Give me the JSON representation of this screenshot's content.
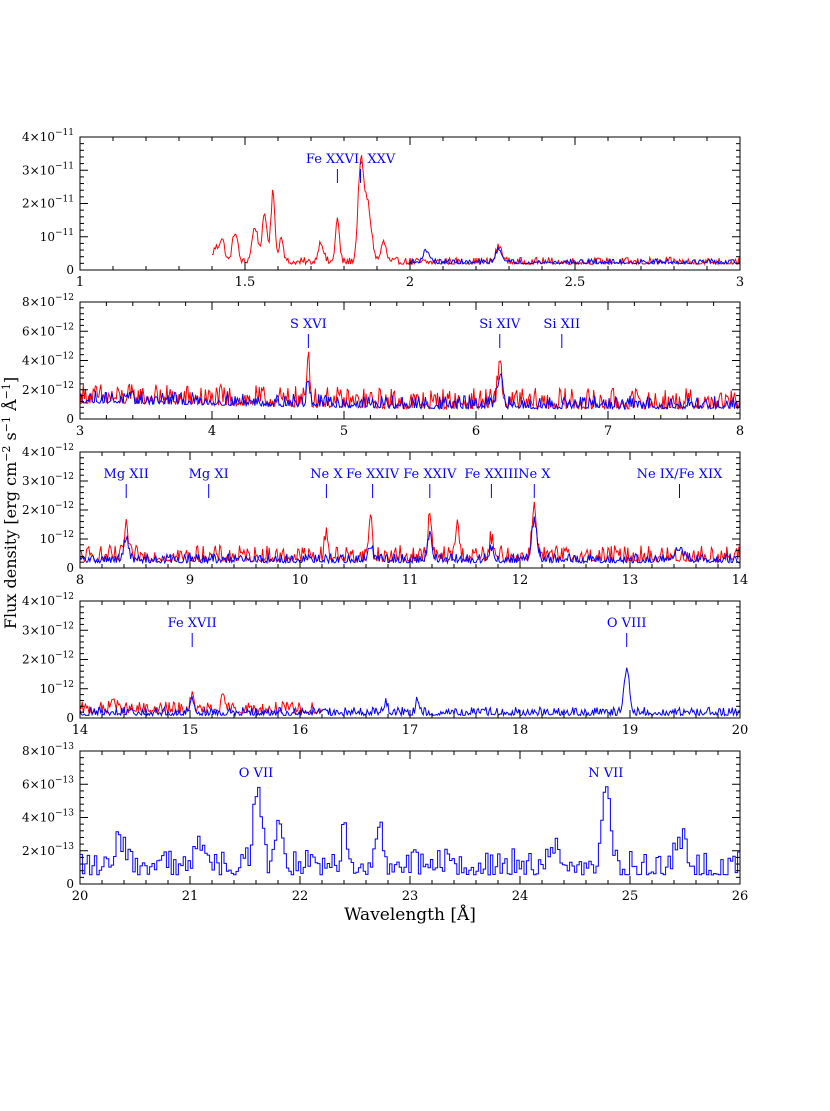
{
  "figure": {
    "ylabel_parts": {
      "prefix": "Flux density [erg cm",
      "exp1": "−2",
      "mid1": " s",
      "exp2": "−1",
      "mid2": " Å",
      "exp3": "−1",
      "suffix": "]"
    },
    "xlabel": "Wavelength [Å]",
    "colors": {
      "series_red": "#ff0000",
      "series_blue": "#0000ff",
      "annotation": "#0000ff",
      "axes": "#000000"
    },
    "series_colors": [
      "red",
      "blue"
    ]
  },
  "chart_data": [
    {
      "type": "line",
      "panel": 1,
      "xlim": [
        1,
        3
      ],
      "ylim": [
        0,
        4e-11
      ],
      "xticks": [
        1,
        1.5,
        2,
        2.5,
        3
      ],
      "xtick_labels": [
        "1",
        "1.5",
        "2",
        "2.5",
        "3"
      ],
      "yticks": [
        0,
        1e-11,
        2e-11,
        3e-11,
        4e-11
      ],
      "ytick_labels": [
        {
          "base": "0",
          "exp": ""
        },
        {
          "base": "10",
          "exp": "−11"
        },
        {
          "base": "2×10",
          "exp": "−11"
        },
        {
          "base": "3×10",
          "exp": "−11"
        },
        {
          "base": "4×10",
          "exp": "−11"
        }
      ],
      "annotations": [
        {
          "text": "Fe XXVI, XXV",
          "x": 1.82,
          "ticks": [
            1.78,
            1.85
          ]
        }
      ],
      "series": [
        {
          "color": "red",
          "x_start": 1.4,
          "x_end": 3.0,
          "baseline": 2.2e-12,
          "noise": 1.3e-12,
          "peaks": [
            [
              1.41,
              4e-12,
              0.008
            ],
            [
              1.43,
              7e-12,
              0.008
            ],
            [
              1.47,
              9e-12,
              0.008
            ],
            [
              1.53,
              1.05e-11,
              0.009
            ],
            [
              1.56,
              1.35e-11,
              0.008
            ],
            [
              1.585,
              2.1e-11,
              0.006
            ],
            [
              1.61,
              8e-12,
              0.006
            ],
            [
              1.73,
              6e-12,
              0.008
            ],
            [
              1.78,
              1.3e-11,
              0.006
            ],
            [
              1.85,
              2.6e-11,
              0.008
            ],
            [
              1.87,
              1.8e-11,
              0.012
            ],
            [
              1.92,
              6e-12,
              0.008
            ],
            [
              2.27,
              4.5e-12,
              0.01
            ]
          ]
        },
        {
          "color": "blue",
          "x_start": 2.0,
          "x_end": 3.0,
          "baseline": 2.2e-12,
          "noise": 9e-13,
          "peaks": [
            [
              2.05,
              3.5e-12,
              0.01
            ],
            [
              2.27,
              3.8e-12,
              0.01
            ]
          ]
        }
      ]
    },
    {
      "type": "line",
      "panel": 2,
      "xlim": [
        3,
        8
      ],
      "ylim": [
        0,
        8e-12
      ],
      "xticks": [
        3,
        4,
        5,
        6,
        7,
        8
      ],
      "xtick_labels": [
        "3",
        "4",
        "5",
        "6",
        "7",
        "8"
      ],
      "yticks": [
        0,
        2e-12,
        4e-12,
        6e-12,
        8e-12
      ],
      "ytick_labels": [
        {
          "base": "0",
          "exp": ""
        },
        {
          "base": "2×10",
          "exp": "−12"
        },
        {
          "base": "4×10",
          "exp": "−12"
        },
        {
          "base": "6×10",
          "exp": "−12"
        },
        {
          "base": "8×10",
          "exp": "−12"
        }
      ],
      "annotations": [
        {
          "text": "S XVI",
          "x": 4.73,
          "ticks": [
            4.73
          ]
        },
        {
          "text": "Si XIV",
          "x": 6.18,
          "ticks": [
            6.18
          ]
        },
        {
          "text": "Si XII",
          "x": 6.65,
          "ticks": [
            6.65
          ]
        }
      ],
      "series": [
        {
          "color": "red",
          "x_start": 3.0,
          "x_end": 8.0,
          "baseline": 1e-12,
          "noise": 9e-13,
          "decay": [
            3.0,
            5.5,
            4e-13
          ],
          "peaks": [
            [
              4.73,
              3.6e-12,
              0.01
            ],
            [
              6.18,
              2.9e-12,
              0.015
            ]
          ]
        },
        {
          "color": "blue",
          "x_start": 3.0,
          "x_end": 8.0,
          "baseline": 9e-13,
          "noise": 5.5e-13,
          "decay": [
            3.0,
            5.5,
            4e-13
          ],
          "peaks": [
            [
              4.73,
              1.5e-12,
              0.012
            ],
            [
              6.18,
              1.8e-12,
              0.02
            ]
          ]
        }
      ]
    },
    {
      "type": "line",
      "panel": 3,
      "xlim": [
        8,
        14
      ],
      "ylim": [
        0,
        4e-12
      ],
      "xticks": [
        8,
        9,
        10,
        11,
        12,
        13,
        14
      ],
      "xtick_labels": [
        "8",
        "9",
        "10",
        "11",
        "12",
        "13",
        "14"
      ],
      "yticks": [
        0,
        1e-12,
        2e-12,
        3e-12,
        4e-12
      ],
      "ytick_labels": [
        {
          "base": "0",
          "exp": ""
        },
        {
          "base": "10",
          "exp": "−12"
        },
        {
          "base": "2×10",
          "exp": "−12"
        },
        {
          "base": "3×10",
          "exp": "−12"
        },
        {
          "base": "4×10",
          "exp": "−12"
        }
      ],
      "annotations": [
        {
          "text": "Mg XII",
          "x": 8.42,
          "ticks": [
            8.42
          ]
        },
        {
          "text": "Mg XI",
          "x": 9.17,
          "ticks": [
            9.17
          ]
        },
        {
          "text": "Ne X",
          "x": 10.24,
          "ticks": [
            10.24
          ]
        },
        {
          "text": "Fe XXIV",
          "x": 10.66,
          "ticks": [
            10.66
          ]
        },
        {
          "text": "Fe XXIV",
          "x": 11.18,
          "ticks": [
            11.18
          ]
        },
        {
          "text": "Fe XXIII",
          "x": 11.74,
          "ticks": [
            11.74
          ]
        },
        {
          "text": "Ne X",
          "x": 12.13,
          "ticks": [
            12.13
          ]
        },
        {
          "text": "Ne IX/Fe XIX",
          "x": 13.45,
          "ticks": [
            13.45
          ]
        }
      ],
      "series": [
        {
          "color": "red",
          "x_start": 8.0,
          "x_end": 14.0,
          "baseline": 3.5e-13,
          "noise": 3.5e-13,
          "peaks": [
            [
              8.42,
              1.2e-12,
              0.015
            ],
            [
              10.24,
              9e-13,
              0.015
            ],
            [
              10.64,
              1.5e-12,
              0.015
            ],
            [
              11.18,
              1.5e-12,
              0.015
            ],
            [
              11.43,
              1.3e-12,
              0.015
            ],
            [
              11.74,
              6e-13,
              0.015
            ],
            [
              12.13,
              1.8e-12,
              0.02
            ]
          ]
        },
        {
          "color": "blue",
          "x_start": 8.0,
          "x_end": 14.0,
          "baseline": 2.5e-13,
          "noise": 2e-13,
          "peaks": [
            [
              8.42,
              8e-13,
              0.02
            ],
            [
              10.64,
              5e-13,
              0.02
            ],
            [
              11.18,
              9e-13,
              0.02
            ],
            [
              11.74,
              4e-13,
              0.02
            ],
            [
              12.13,
              1.3e-12,
              0.025
            ],
            [
              13.45,
              3e-13,
              0.05
            ]
          ]
        }
      ]
    },
    {
      "type": "line",
      "panel": 4,
      "xlim": [
        14,
        20
      ],
      "ylim": [
        0,
        4e-12
      ],
      "xticks": [
        14,
        15,
        16,
        17,
        18,
        19,
        20
      ],
      "xtick_labels": [
        "14",
        "15",
        "16",
        "17",
        "18",
        "19",
        "20"
      ],
      "yticks": [
        0,
        1e-12,
        2e-12,
        3e-12,
        4e-12
      ],
      "ytick_labels": [
        {
          "base": "0",
          "exp": ""
        },
        {
          "base": "10",
          "exp": "−12"
        },
        {
          "base": "2×10",
          "exp": "−12"
        },
        {
          "base": "3×10",
          "exp": "−12"
        },
        {
          "base": "4×10",
          "exp": "−12"
        }
      ],
      "annotations": [
        {
          "text": "Fe XVII",
          "x": 15.02,
          "ticks": [
            15.02
          ]
        },
        {
          "text": "O VIII",
          "x": 18.97,
          "ticks": [
            18.97
          ]
        }
      ],
      "series": [
        {
          "color": "red",
          "x_start": 14.0,
          "x_end": 16.2,
          "baseline": 2.5e-13,
          "noise": 2.5e-13,
          "peaks": [
            [
              14.3,
              4e-13,
              0.02
            ],
            [
              15.02,
              4e-13,
              0.02
            ],
            [
              15.3,
              3e-13,
              0.02
            ]
          ]
        },
        {
          "color": "blue",
          "x_start": 14.0,
          "x_end": 20.0,
          "baseline": 1.5e-13,
          "noise": 1.8e-13,
          "peaks": [
            [
              15.02,
              5e-13,
              0.02
            ],
            [
              16.78,
              4e-13,
              0.015
            ],
            [
              17.07,
              5e-13,
              0.015
            ],
            [
              18.97,
              1.5e-12,
              0.025
            ]
          ]
        }
      ]
    },
    {
      "type": "line",
      "panel": 5,
      "xlim": [
        20,
        26
      ],
      "ylim": [
        0,
        8e-13
      ],
      "xticks": [
        20,
        21,
        22,
        23,
        24,
        25,
        26
      ],
      "xtick_labels": [
        "20",
        "21",
        "22",
        "23",
        "24",
        "25",
        "26"
      ],
      "yticks": [
        0,
        2e-13,
        4e-13,
        6e-13,
        8e-13
      ],
      "ytick_labels": [
        {
          "base": "0",
          "exp": ""
        },
        {
          "base": "2×10",
          "exp": "−13"
        },
        {
          "base": "4×10",
          "exp": "−13"
        },
        {
          "base": "6×10",
          "exp": "−13"
        },
        {
          "base": "8×10",
          "exp": "−13"
        }
      ],
      "annotations": [
        {
          "text": "O VII",
          "x": 21.6,
          "ticks": []
        },
        {
          "text": "N VII",
          "x": 24.78,
          "ticks": []
        }
      ],
      "series": [
        {
          "color": "red",
          "x_start": 20.0,
          "x_end": 21.5,
          "baseline": 0.0,
          "noise": 0.0,
          "peaks": []
        },
        {
          "color": "blue",
          "x_start": 20.0,
          "x_end": 26.0,
          "baseline": 9e-14,
          "noise": 1e-13,
          "step": true,
          "peaks": [
            [
              20.35,
              1.2e-13,
              0.05
            ],
            [
              21.1,
              1.5e-13,
              0.05
            ],
            [
              21.6,
              4.8e-13,
              0.035
            ],
            [
              21.8,
              3.2e-13,
              0.035
            ],
            [
              22.4,
              2e-13,
              0.03
            ],
            [
              22.7,
              2.5e-13,
              0.03
            ],
            [
              24.3,
              1e-13,
              0.05
            ],
            [
              24.78,
              5.3e-13,
              0.035
            ],
            [
              25.45,
              1.5e-13,
              0.04
            ]
          ]
        }
      ]
    }
  ]
}
